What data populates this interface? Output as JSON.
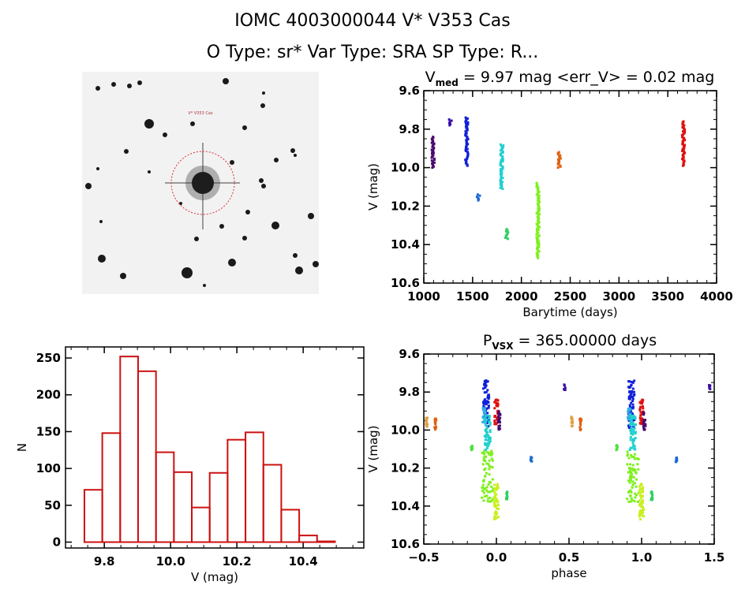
{
  "header": {
    "title": "IOMC 4003000044    V* V353 Cas",
    "subtitle": "O Type: sr*  Var Type: SRA  SP Type: R..."
  },
  "finder_chart": {
    "target_label": "V* V353 Cas",
    "circle_color": "#e0303a"
  },
  "chart_data": [
    {
      "id": "lightcurve",
      "type": "scatter",
      "title_main": "V",
      "title_sub": "med",
      "title_rest": " = 9.97 mag <err_V> = 0.02 mag",
      "xlabel": "Barytime (days)",
      "ylabel": "V (mag)",
      "xlim": [
        1000,
        4000
      ],
      "ylim": [
        9.6,
        10.6
      ],
      "y_inverted": true,
      "xticks": [
        1000,
        1500,
        2000,
        2500,
        3000,
        3500,
        4000
      ],
      "yticks": [
        9.6,
        9.8,
        10.0,
        10.2,
        10.4,
        10.6
      ],
      "ytick_labels": [
        "9.6",
        "9.8",
        "10.0",
        "10.2",
        "10.4",
        "10.6"
      ],
      "clusters": [
        {
          "t": 1095,
          "vmin": 9.84,
          "vmax": 10.0,
          "color": "#4a0a6e"
        },
        {
          "t": 1270,
          "vmin": 9.75,
          "vmax": 9.78,
          "color": "#3a10a8"
        },
        {
          "t": 1440,
          "vmin": 9.74,
          "vmax": 9.99,
          "color": "#1020d8"
        },
        {
          "t": 1560,
          "vmin": 10.14,
          "vmax": 10.17,
          "color": "#1a6ad0"
        },
        {
          "t": 1800,
          "vmin": 9.88,
          "vmax": 10.11,
          "color": "#20d0d0"
        },
        {
          "t": 1850,
          "vmin": 10.32,
          "vmax": 10.37,
          "color": "#30d060"
        },
        {
          "t": 2170,
          "vmin": 10.08,
          "vmax": 10.47,
          "color": "#80f020"
        },
        {
          "t": 2390,
          "vmin": 9.92,
          "vmax": 10.0,
          "color": "#e06010"
        },
        {
          "t": 3660,
          "vmin": 9.76,
          "vmax": 9.99,
          "color": "#e01010"
        }
      ]
    },
    {
      "id": "histogram",
      "type": "bar",
      "xlabel": "V (mag)",
      "ylabel": "N",
      "xlim": [
        9.683,
        10.583
      ],
      "ylim": [
        -8,
        265
      ],
      "xticks": [
        9.8,
        10.0,
        10.2,
        10.4
      ],
      "xtick_labels": [
        "9.8",
        "10.0",
        "10.2",
        "10.4"
      ],
      "yticks": [
        0,
        50,
        100,
        150,
        200,
        250
      ],
      "bin_edges": [
        9.74,
        9.794,
        9.848,
        9.902,
        9.956,
        10.01,
        10.064,
        10.118,
        10.172,
        10.226,
        10.28,
        10.334,
        10.388,
        10.442,
        10.496
      ],
      "values": [
        71,
        148,
        252,
        232,
        122,
        95,
        47,
        94,
        139,
        149,
        105,
        44,
        9,
        1
      ],
      "color": "#cc1111"
    },
    {
      "id": "phased",
      "type": "scatter",
      "title_main": "P",
      "title_sub": "VSX",
      "title_rest": " = 365.00000 days",
      "xlabel": "phase",
      "ylabel": "V (mag)",
      "xlim": [
        -0.5,
        1.5
      ],
      "ylim": [
        9.6,
        10.6
      ],
      "y_inverted": true,
      "xticks": [
        -0.5,
        0.0,
        0.5,
        1.0,
        1.5
      ],
      "xtick_labels": [
        "−0.5",
        "0.0",
        "0.5",
        "1.0",
        "1.5"
      ],
      "yticks": [
        9.6,
        9.8,
        10.0,
        10.2,
        10.4,
        10.6
      ],
      "ytick_labels": [
        "9.6",
        "9.8",
        "10.0",
        "10.2",
        "10.4",
        "10.6"
      ],
      "clusters": [
        {
          "phase": -0.07,
          "vmin": 9.74,
          "vmax": 9.99,
          "color": "#1020d8",
          "width": 0.04
        },
        {
          "phase": -0.085,
          "vmin": 9.88,
          "vmax": 9.96,
          "color": "#30b0e0",
          "width": 0.02
        },
        {
          "phase": -0.06,
          "vmin": 9.92,
          "vmax": 10.11,
          "color": "#20d0d0",
          "width": 0.04
        },
        {
          "phase": 0.0,
          "vmin": 9.84,
          "vmax": 9.97,
          "color": "#e01010",
          "width": 0.025
        },
        {
          "phase": 0.02,
          "vmin": 9.9,
          "vmax": 10.0,
          "color": "#4a0a6e",
          "width": 0.015
        },
        {
          "phase": -0.06,
          "vmin": 10.11,
          "vmax": 10.38,
          "color": "#80f020",
          "width": 0.08
        },
        {
          "phase": 0.0,
          "vmin": 10.28,
          "vmax": 10.47,
          "color": "#c8f020",
          "width": 0.03
        },
        {
          "phase": 0.07,
          "vmin": 10.32,
          "vmax": 10.37,
          "color": "#30d060",
          "width": 0.01
        },
        {
          "phase": -0.17,
          "vmin": 10.08,
          "vmax": 10.11,
          "color": "#50e040",
          "width": 0.01
        },
        {
          "phase": 0.24,
          "vmin": 10.14,
          "vmax": 10.17,
          "color": "#1a6ad0",
          "width": 0.01
        },
        {
          "phase": 0.47,
          "vmin": 9.76,
          "vmax": 9.79,
          "color": "#3a10a8",
          "width": 0.01
        },
        {
          "phase": -0.48,
          "vmin": 9.93,
          "vmax": 9.99,
          "color": "#e0a040",
          "width": 0.01
        },
        {
          "phase": -0.42,
          "vmin": 9.94,
          "vmax": 10.0,
          "color": "#e06010",
          "width": 0.012
        }
      ]
    }
  ]
}
